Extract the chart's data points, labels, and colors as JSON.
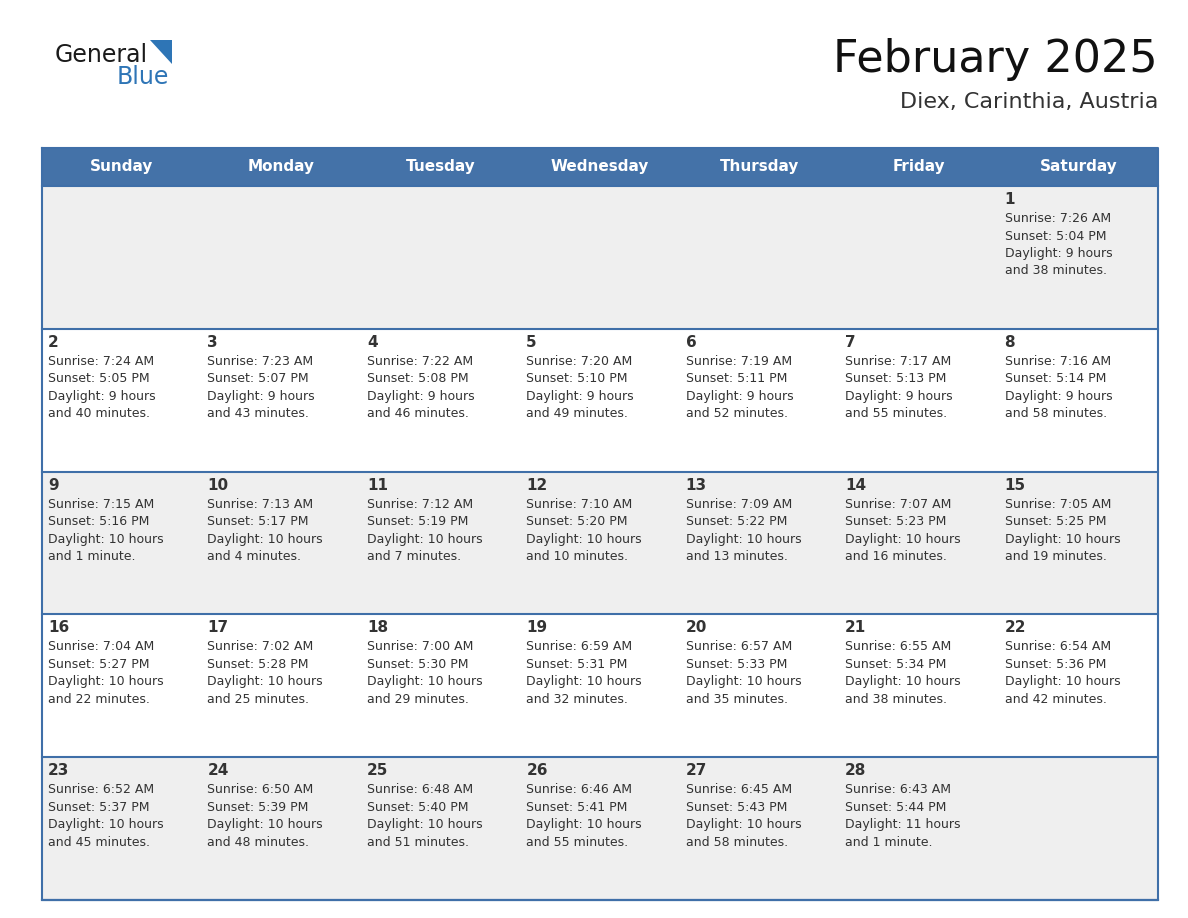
{
  "title": "February 2025",
  "subtitle": "Diex, Carinthia, Austria",
  "days_of_week": [
    "Sunday",
    "Monday",
    "Tuesday",
    "Wednesday",
    "Thursday",
    "Friday",
    "Saturday"
  ],
  "header_bg": "#4472A8",
  "header_text": "#FFFFFF",
  "row_bg_gray": "#EFEFEF",
  "row_bg_white": "#FFFFFF",
  "separator_color": "#3F6FA8",
  "text_color": "#333333",
  "calendar_data": [
    [
      null,
      null,
      null,
      null,
      null,
      null,
      {
        "day": "1",
        "sunrise": "7:26 AM",
        "sunset": "5:04 PM",
        "daylight": "9 hours\nand 38 minutes."
      }
    ],
    [
      {
        "day": "2",
        "sunrise": "7:24 AM",
        "sunset": "5:05 PM",
        "daylight": "9 hours\nand 40 minutes."
      },
      {
        "day": "3",
        "sunrise": "7:23 AM",
        "sunset": "5:07 PM",
        "daylight": "9 hours\nand 43 minutes."
      },
      {
        "day": "4",
        "sunrise": "7:22 AM",
        "sunset": "5:08 PM",
        "daylight": "9 hours\nand 46 minutes."
      },
      {
        "day": "5",
        "sunrise": "7:20 AM",
        "sunset": "5:10 PM",
        "daylight": "9 hours\nand 49 minutes."
      },
      {
        "day": "6",
        "sunrise": "7:19 AM",
        "sunset": "5:11 PM",
        "daylight": "9 hours\nand 52 minutes."
      },
      {
        "day": "7",
        "sunrise": "7:17 AM",
        "sunset": "5:13 PM",
        "daylight": "9 hours\nand 55 minutes."
      },
      {
        "day": "8",
        "sunrise": "7:16 AM",
        "sunset": "5:14 PM",
        "daylight": "9 hours\nand 58 minutes."
      }
    ],
    [
      {
        "day": "9",
        "sunrise": "7:15 AM",
        "sunset": "5:16 PM",
        "daylight": "10 hours\nand 1 minute."
      },
      {
        "day": "10",
        "sunrise": "7:13 AM",
        "sunset": "5:17 PM",
        "daylight": "10 hours\nand 4 minutes."
      },
      {
        "day": "11",
        "sunrise": "7:12 AM",
        "sunset": "5:19 PM",
        "daylight": "10 hours\nand 7 minutes."
      },
      {
        "day": "12",
        "sunrise": "7:10 AM",
        "sunset": "5:20 PM",
        "daylight": "10 hours\nand 10 minutes."
      },
      {
        "day": "13",
        "sunrise": "7:09 AM",
        "sunset": "5:22 PM",
        "daylight": "10 hours\nand 13 minutes."
      },
      {
        "day": "14",
        "sunrise": "7:07 AM",
        "sunset": "5:23 PM",
        "daylight": "10 hours\nand 16 minutes."
      },
      {
        "day": "15",
        "sunrise": "7:05 AM",
        "sunset": "5:25 PM",
        "daylight": "10 hours\nand 19 minutes."
      }
    ],
    [
      {
        "day": "16",
        "sunrise": "7:04 AM",
        "sunset": "5:27 PM",
        "daylight": "10 hours\nand 22 minutes."
      },
      {
        "day": "17",
        "sunrise": "7:02 AM",
        "sunset": "5:28 PM",
        "daylight": "10 hours\nand 25 minutes."
      },
      {
        "day": "18",
        "sunrise": "7:00 AM",
        "sunset": "5:30 PM",
        "daylight": "10 hours\nand 29 minutes."
      },
      {
        "day": "19",
        "sunrise": "6:59 AM",
        "sunset": "5:31 PM",
        "daylight": "10 hours\nand 32 minutes."
      },
      {
        "day": "20",
        "sunrise": "6:57 AM",
        "sunset": "5:33 PM",
        "daylight": "10 hours\nand 35 minutes."
      },
      {
        "day": "21",
        "sunrise": "6:55 AM",
        "sunset": "5:34 PM",
        "daylight": "10 hours\nand 38 minutes."
      },
      {
        "day": "22",
        "sunrise": "6:54 AM",
        "sunset": "5:36 PM",
        "daylight": "10 hours\nand 42 minutes."
      }
    ],
    [
      {
        "day": "23",
        "sunrise": "6:52 AM",
        "sunset": "5:37 PM",
        "daylight": "10 hours\nand 45 minutes."
      },
      {
        "day": "24",
        "sunrise": "6:50 AM",
        "sunset": "5:39 PM",
        "daylight": "10 hours\nand 48 minutes."
      },
      {
        "day": "25",
        "sunrise": "6:48 AM",
        "sunset": "5:40 PM",
        "daylight": "10 hours\nand 51 minutes."
      },
      {
        "day": "26",
        "sunrise": "6:46 AM",
        "sunset": "5:41 PM",
        "daylight": "10 hours\nand 55 minutes."
      },
      {
        "day": "27",
        "sunrise": "6:45 AM",
        "sunset": "5:43 PM",
        "daylight": "10 hours\nand 58 minutes."
      },
      {
        "day": "28",
        "sunrise": "6:43 AM",
        "sunset": "5:44 PM",
        "daylight": "11 hours\nand 1 minute."
      },
      null
    ]
  ],
  "logo_triangle_color": "#2E75B6",
  "title_fontsize": 32,
  "subtitle_fontsize": 16,
  "header_fontsize": 11,
  "day_num_fontsize": 11,
  "cell_text_fontsize": 9
}
